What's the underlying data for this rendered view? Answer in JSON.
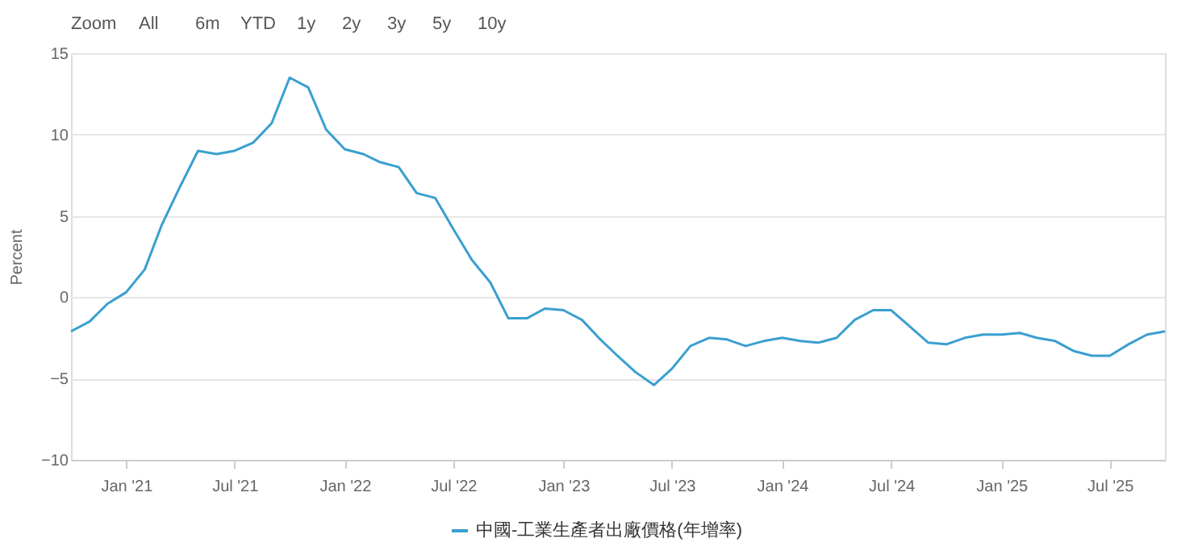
{
  "chart_data": {
    "type": "line",
    "ylabel": "Percent",
    "annotations": [
      "Zoom",
      "All",
      "6m",
      "YTD",
      "1y",
      "2y",
      "3y",
      "5y",
      "10y"
    ],
    "x": [
      "2020-10",
      "2020-11",
      "2020-12",
      "2021-01",
      "2021-02",
      "2021-03",
      "2021-04",
      "2021-05",
      "2021-06",
      "2021-07",
      "2021-08",
      "2021-09",
      "2021-10",
      "2021-11",
      "2021-12",
      "2022-01",
      "2022-02",
      "2022-03",
      "2022-04",
      "2022-05",
      "2022-06",
      "2022-07",
      "2022-08",
      "2022-09",
      "2022-10",
      "2022-11",
      "2022-12",
      "2023-01",
      "2023-02",
      "2023-03",
      "2023-04",
      "2023-05",
      "2023-06",
      "2023-07",
      "2023-08",
      "2023-09",
      "2023-10",
      "2023-11",
      "2023-12",
      "2024-01",
      "2024-02",
      "2024-03",
      "2024-04",
      "2024-05",
      "2024-06",
      "2024-07",
      "2024-08",
      "2024-09",
      "2024-10",
      "2024-11",
      "2024-12",
      "2025-01",
      "2025-02",
      "2025-03",
      "2025-04",
      "2025-05",
      "2025-06",
      "2025-07",
      "2025-08",
      "2025-09",
      "2025-10"
    ],
    "series": [
      {
        "name": "中國-工業生產者出廠價格(年增率)",
        "color": "#3a9fd0",
        "values": [
          -2.1,
          -1.5,
          -0.4,
          0.3,
          1.7,
          4.4,
          6.8,
          9.0,
          8.8,
          9.0,
          9.5,
          10.7,
          13.5,
          12.9,
          10.3,
          9.1,
          8.8,
          8.3,
          8.0,
          6.4,
          6.1,
          4.2,
          2.3,
          0.9,
          -1.3,
          -1.3,
          -0.7,
          -0.8,
          -1.4,
          -2.5,
          -3.6,
          -4.6,
          -5.4,
          -4.4,
          -3.0,
          -2.5,
          -2.6,
          -3.0,
          -2.7,
          -2.5,
          -2.7,
          -2.8,
          -2.5,
          -1.4,
          -0.8,
          -0.8,
          -1.8,
          -2.8,
          -2.9,
          -2.5,
          -2.3,
          -2.3,
          -2.2,
          -2.5,
          -2.7,
          -3.3,
          -3.6,
          -3.6,
          -2.9,
          -2.3,
          -2.1
        ]
      }
    ],
    "xlim": [
      "2020-10",
      "2025-10"
    ],
    "xticks": [
      {
        "value": "2021-01",
        "label": "Jan '21"
      },
      {
        "value": "2021-07",
        "label": "Jul '21"
      },
      {
        "value": "2022-01",
        "label": "Jan '22"
      },
      {
        "value": "2022-07",
        "label": "Jul '22"
      },
      {
        "value": "2023-01",
        "label": "Jan '23"
      },
      {
        "value": "2023-07",
        "label": "Jul '23"
      },
      {
        "value": "2024-01",
        "label": "Jan '24"
      },
      {
        "value": "2024-07",
        "label": "Jul '24"
      },
      {
        "value": "2025-01",
        "label": "Jan '25"
      },
      {
        "value": "2025-07",
        "label": "Jul '25"
      }
    ],
    "ylim": [
      -10,
      15
    ],
    "yticks": [
      -10,
      -5,
      0,
      5,
      10,
      15
    ],
    "grid": "y",
    "legend": "bottom",
    "marker": "none",
    "line_style": "solid"
  }
}
